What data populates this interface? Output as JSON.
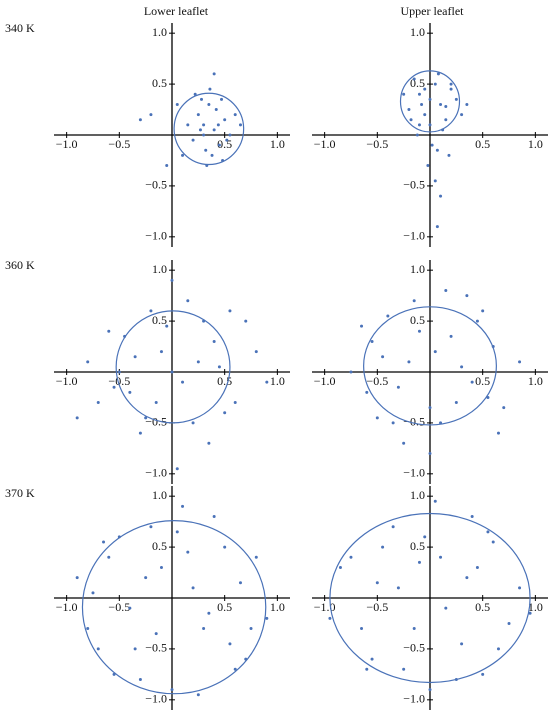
{
  "column_titles": [
    "Lower leaflet",
    "Upper leaflet"
  ],
  "row_labels": [
    "340 K",
    "360 K",
    "370 K"
  ],
  "chart_data": [
    {
      "type": "scatter",
      "color": "#4a72b8",
      "x": [
        0.3,
        0.4,
        0.25,
        0.45,
        0.35,
        0.5,
        0.2,
        0.38,
        0.28,
        0.55,
        0.42,
        0.32,
        0.15,
        0.6,
        0.48,
        0.36,
        0.22,
        0.44,
        0.3,
        0.52,
        -0.3,
        -0.2,
        -0.05,
        0.05,
        0.1,
        0.65,
        0.4,
        0.33,
        0.27,
        0.47
      ],
      "y": [
        0.1,
        0.05,
        0.2,
        -0.1,
        0.3,
        0.15,
        -0.05,
        -0.2,
        0.35,
        0.0,
        0.25,
        -0.15,
        0.1,
        0.2,
        -0.25,
        0.45,
        0.4,
        0.1,
        0.0,
        -0.05,
        0.15,
        0.2,
        -0.3,
        0.3,
        -0.2,
        0.1,
        0.6,
        -0.3,
        0.05,
        0.35
      ],
      "circle": {
        "center": [
          0.35,
          0.06
        ],
        "radii": [
          0.33,
          0.35
        ]
      },
      "xlim": [
        -1.12,
        1.12
      ],
      "ylim": [
        -1.1,
        1.1
      ],
      "xticks": [
        {
          "value": -1,
          "label": "−1.0"
        },
        {
          "value": -0.5,
          "label": "−0.5"
        },
        0.5,
        {
          "value": 1,
          "label": "1.0"
        }
      ],
      "yticks": [
        {
          "value": -1,
          "label": "−1.0"
        },
        {
          "value": -0.5,
          "label": "−0.5"
        },
        0.5,
        {
          "value": 1,
          "label": "1.0"
        }
      ]
    },
    {
      "type": "scatter",
      "color": "#4a72b8",
      "x": [
        0.0,
        -0.1,
        0.1,
        -0.2,
        0.2,
        0.05,
        -0.05,
        0.15,
        -0.15,
        0.25,
        -0.25,
        0.0,
        0.08,
        -0.08,
        0.3,
        0.12,
        -0.12,
        0.02,
        0.18,
        -0.02,
        0.05,
        0.1,
        -0.05,
        0.15,
        0.2,
        -0.1,
        0.35,
        0.07,
        -0.18,
        0.07
      ],
      "y": [
        0.35,
        0.4,
        0.3,
        0.25,
        0.45,
        0.5,
        0.2,
        0.15,
        0.55,
        0.35,
        0.4,
        0.1,
        0.6,
        0.3,
        0.2,
        0.05,
        0.0,
        -0.1,
        -0.2,
        -0.3,
        -0.45,
        -0.6,
        0.45,
        0.28,
        0.5,
        0.1,
        0.3,
        -0.15,
        0.15,
        -0.9
      ],
      "circle": {
        "center": [
          0.0,
          0.33
        ],
        "radii": [
          0.28,
          0.3
        ]
      },
      "xlim": [
        -1.12,
        1.12
      ],
      "ylim": [
        -1.1,
        1.1
      ],
      "xticks": [
        {
          "value": -1,
          "label": "−1.0"
        },
        {
          "value": -0.5,
          "label": "−0.5"
        },
        0.5,
        {
          "value": 1,
          "label": "1.0"
        }
      ],
      "yticks": [
        {
          "value": -1,
          "label": "−1.0"
        },
        {
          "value": -0.5,
          "label": "−0.5"
        },
        0.5,
        {
          "value": 1,
          "label": "1.0"
        }
      ]
    },
    {
      "type": "scatter",
      "color": "#4a72b8",
      "x": [
        -0.8,
        -0.6,
        -0.4,
        -0.2,
        0.0,
        0.2,
        0.4,
        0.6,
        0.8,
        -0.5,
        -0.3,
        -0.1,
        0.1,
        0.3,
        0.5,
        -0.7,
        0.7,
        -0.45,
        0.45,
        -0.15,
        0.15,
        -0.35,
        0.35,
        0.05,
        -0.05,
        0.25,
        -0.25,
        0.55,
        -0.55,
        0.0,
        -0.9,
        0.9
      ],
      "y": [
        0.1,
        0.4,
        -0.2,
        0.6,
        0.9,
        -0.5,
        0.3,
        -0.3,
        0.2,
        0.0,
        -0.6,
        0.2,
        -0.1,
        0.5,
        -0.4,
        -0.3,
        0.5,
        0.35,
        0.05,
        -0.3,
        0.7,
        0.15,
        -0.7,
        -0.95,
        0.45,
        0.1,
        -0.45,
        0.6,
        -0.15,
        0.0,
        -0.45,
        -0.1
      ],
      "circle": {
        "center": [
          0.01,
          0.05
        ],
        "radii": [
          0.54,
          0.55
        ]
      },
      "xlim": [
        -1.12,
        1.12
      ],
      "ylim": [
        -1.1,
        1.1
      ],
      "xticks": [
        {
          "value": -1,
          "label": "−1.0"
        },
        {
          "value": -0.5,
          "label": "−0.5"
        },
        0.5,
        {
          "value": 1,
          "label": "1.0"
        }
      ],
      "yticks": [
        {
          "value": -1,
          "label": "−1.0"
        },
        {
          "value": -0.5,
          "label": "−0.5"
        },
        0.5,
        {
          "value": 1,
          "label": "1.0"
        }
      ]
    },
    {
      "type": "scatter",
      "color": "#4a72b8",
      "x": [
        -0.75,
        -0.55,
        -0.35,
        -0.15,
        0.05,
        0.25,
        0.45,
        0.65,
        0.85,
        -0.6,
        -0.4,
        -0.2,
        0.0,
        0.2,
        0.4,
        0.6,
        -0.5,
        0.5,
        -0.3,
        0.3,
        -0.1,
        0.1,
        -0.65,
        0.7,
        0.15,
        -0.25,
        0.35,
        -0.45,
        0.55,
        0.0
      ],
      "y": [
        0.0,
        0.3,
        -0.5,
        0.7,
        0.2,
        -0.3,
        0.5,
        -0.6,
        0.1,
        -0.2,
        0.55,
        0.1,
        -0.8,
        0.35,
        -0.1,
        0.25,
        -0.45,
        0.6,
        -0.15,
        0.05,
        0.4,
        -0.5,
        0.45,
        -0.35,
        0.8,
        -0.7,
        0.75,
        0.15,
        -0.25,
        -0.35
      ],
      "circle": {
        "center": [
          0.0,
          0.06
        ],
        "radii": [
          0.63,
          0.58
        ]
      },
      "xlim": [
        -1.12,
        1.12
      ],
      "ylim": [
        -1.1,
        1.1
      ],
      "xticks": [
        {
          "value": -1,
          "label": "−1.0"
        },
        {
          "value": -0.5,
          "label": "−0.5"
        },
        0.5,
        {
          "value": 1,
          "label": "1.0"
        }
      ],
      "yticks": [
        {
          "value": -1,
          "label": "−1.0"
        },
        {
          "value": -0.5,
          "label": "−0.5"
        },
        0.5,
        {
          "value": 1,
          "label": "1.0"
        }
      ]
    },
    {
      "type": "scatter",
      "color": "#4a72b8",
      "x": [
        -0.9,
        -0.7,
        -0.5,
        -0.3,
        -0.1,
        0.1,
        0.3,
        0.5,
        0.7,
        0.9,
        -0.8,
        -0.6,
        -0.4,
        -0.2,
        0.0,
        0.2,
        0.4,
        0.6,
        0.8,
        -0.65,
        0.65,
        -0.35,
        0.35,
        -0.15,
        0.15,
        -0.55,
        0.55,
        0.05,
        -0.75,
        0.75,
        0.25,
        -0.25
      ],
      "y": [
        0.2,
        -0.5,
        0.6,
        -0.8,
        0.3,
        0.9,
        -0.3,
        0.5,
        -0.6,
        -0.2,
        -0.3,
        0.4,
        -0.1,
        0.7,
        -0.9,
        0.1,
        0.8,
        -0.7,
        0.4,
        0.55,
        0.15,
        -0.5,
        -0.15,
        -0.35,
        0.45,
        -0.75,
        -0.45,
        0.65,
        0.05,
        -0.3,
        -0.95,
        0.2
      ],
      "circle": {
        "center": [
          0.02,
          -0.09
        ],
        "radii": [
          0.87,
          0.85
        ]
      },
      "xlim": [
        -1.12,
        1.12
      ],
      "ylim": [
        -1.1,
        1.1
      ],
      "xticks": [
        {
          "value": -1,
          "label": "−1.0"
        },
        {
          "value": -0.5,
          "label": "−0.5"
        },
        0.5,
        {
          "value": 1,
          "label": "1.0"
        }
      ],
      "yticks": [
        {
          "value": -1,
          "label": "−1.0"
        },
        {
          "value": -0.5,
          "label": "−0.5"
        },
        0.5,
        {
          "value": 1,
          "label": "1.0"
        }
      ]
    },
    {
      "type": "scatter",
      "color": "#4a72b8",
      "x": [
        -0.95,
        -0.75,
        -0.55,
        -0.35,
        -0.15,
        0.05,
        0.25,
        0.45,
        0.65,
        0.85,
        -0.85,
        -0.65,
        -0.45,
        -0.25,
        -0.05,
        0.15,
        0.35,
        0.55,
        0.75,
        0.95,
        -0.6,
        0.6,
        -0.3,
        0.3,
        0.0,
        -0.5,
        0.5,
        -0.1,
        0.1,
        0.4
      ],
      "y": [
        -0.2,
        0.4,
        -0.6,
        0.7,
        -0.3,
        0.95,
        -0.8,
        0.3,
        -0.5,
        0.1,
        0.3,
        -0.3,
        0.5,
        -0.7,
        0.6,
        -0.1,
        0.2,
        0.65,
        -0.25,
        -0.15,
        -0.7,
        0.55,
        0.1,
        -0.45,
        -0.9,
        0.15,
        -0.75,
        0.35,
        0.4,
        0.8
      ],
      "circle": {
        "center": [
          0.0,
          0.0
        ],
        "radii": [
          0.95,
          0.83
        ]
      },
      "xlim": [
        -1.12,
        1.12
      ],
      "ylim": [
        -1.1,
        1.1
      ],
      "xticks": [
        {
          "value": -1,
          "label": "−1.0"
        },
        {
          "value": -0.5,
          "label": "−0.5"
        },
        0.5,
        {
          "value": 1,
          "label": "1.0"
        }
      ],
      "yticks": [
        {
          "value": -1,
          "label": "−1.0"
        },
        {
          "value": -0.5,
          "label": "−0.5"
        },
        0.5,
        {
          "value": 1,
          "label": "1.0"
        }
      ]
    }
  ]
}
